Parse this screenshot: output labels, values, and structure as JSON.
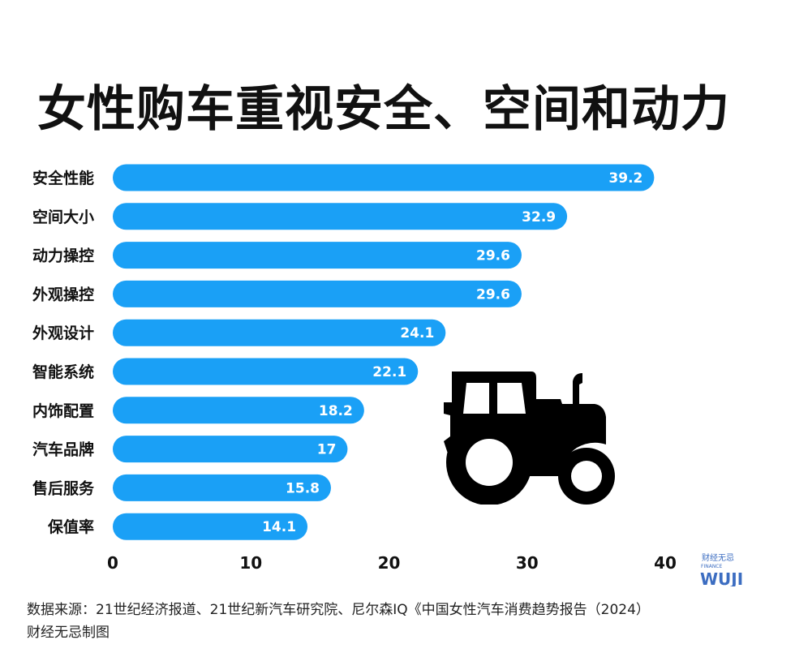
{
  "title": "女性购车重视安全、空间和动力",
  "source_line1": "数据来源：21世纪经济报道、21世纪新汽车研究院、尼尔森IQ《中国女性汽车消费趋势报告（2024）",
  "source_line2": "财经无忌制图",
  "logo": {
    "cn": "财经无忌",
    "en": "FINANCE",
    "mark": "WUJI"
  },
  "colors": {
    "bar": "#1aa0f6",
    "text": "#111111",
    "logo": "#3c6dc1"
  },
  "icons": [
    "tractor-icon"
  ],
  "chart_data": {
    "type": "bar",
    "orientation": "horizontal",
    "categories": [
      "安全性能",
      "空间大小",
      "动力操控",
      "外观操控",
      "外观设计",
      "智能系统",
      "内饰配置",
      "汽车品牌",
      "售后服务",
      "保值率"
    ],
    "values": [
      39.2,
      32.9,
      29.6,
      29.6,
      24.1,
      22.1,
      18.2,
      17,
      15.8,
      14.1
    ],
    "value_labels": [
      "39.2",
      "32.9",
      "29.6",
      "29.6",
      "24.1",
      "22.1",
      "18.2",
      "17",
      "15.8",
      "14.1"
    ],
    "xticks": [
      0,
      10,
      20,
      30,
      40
    ],
    "xlim": [
      0,
      40
    ],
    "xlabel": "",
    "ylabel": "",
    "grid": false
  }
}
